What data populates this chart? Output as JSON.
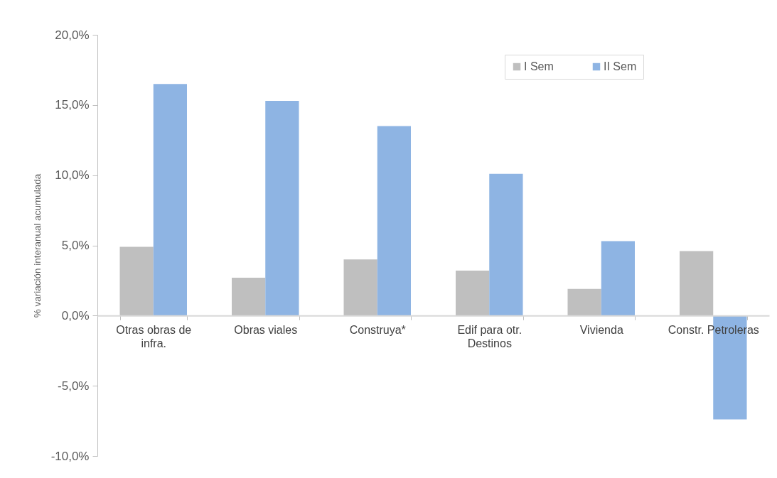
{
  "chart_data": {
    "type": "bar",
    "ylabel": "% variación interanual acumulada",
    "categories": [
      "Otras obras de infra.",
      "Obras viales",
      "Construya*",
      "Edif para otr. Destinos",
      "Vivienda",
      "Constr. Petroleras"
    ],
    "series": [
      {
        "name": "I Sem",
        "color": "#bfbfbf",
        "values": [
          4.9,
          2.7,
          4.0,
          3.2,
          1.9,
          4.6
        ]
      },
      {
        "name": "II Sem",
        "color": "#8eb4e3",
        "values": [
          16.5,
          15.3,
          13.5,
          10.1,
          5.3,
          -7.4
        ]
      }
    ],
    "ylim": [
      -10,
      20
    ],
    "yticks": [
      {
        "value": -10,
        "label": "-10,0%"
      },
      {
        "value": -5,
        "label": "-5,0%"
      },
      {
        "value": 0,
        "label": "0,0%"
      },
      {
        "value": 5,
        "label": "5,0%"
      },
      {
        "value": 10,
        "label": "10,0%"
      },
      {
        "value": 15,
        "label": "15,0%"
      },
      {
        "value": 20,
        "label": "20,0%"
      }
    ],
    "legend": "top right"
  }
}
